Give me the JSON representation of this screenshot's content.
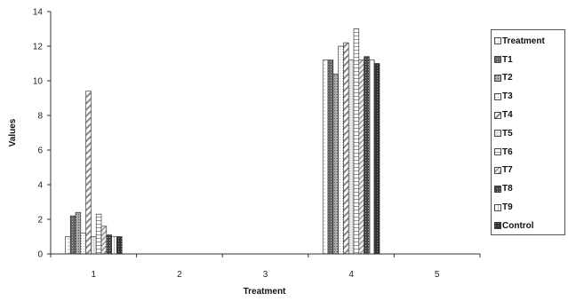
{
  "chart_data": {
    "type": "bar",
    "title": "",
    "xlabel": "Treatment",
    "ylabel": "Values",
    "ylim": [
      0,
      14
    ],
    "yticks": [
      0,
      2,
      4,
      6,
      8,
      10,
      12,
      14
    ],
    "categories": [
      "1",
      "2",
      "3",
      "4",
      "5"
    ],
    "grid": false,
    "legend": "right",
    "series": [
      {
        "name": "Treatment",
        "values": [
          1.0,
          null,
          null,
          11.2,
          null
        ]
      },
      {
        "name": "T1",
        "values": [
          2.2,
          null,
          null,
          11.2,
          null
        ]
      },
      {
        "name": "T2",
        "values": [
          2.4,
          null,
          null,
          10.4,
          null
        ]
      },
      {
        "name": "T3",
        "values": [
          1.2,
          null,
          null,
          12.0,
          null
        ]
      },
      {
        "name": "T4",
        "values": [
          9.4,
          null,
          null,
          12.2,
          null
        ]
      },
      {
        "name": "T5",
        "values": [
          1.0,
          null,
          null,
          11.2,
          null
        ]
      },
      {
        "name": "T6",
        "values": [
          2.3,
          null,
          null,
          13.0,
          null
        ]
      },
      {
        "name": "T7",
        "values": [
          1.6,
          null,
          null,
          11.2,
          null
        ]
      },
      {
        "name": "T8",
        "values": [
          1.1,
          null,
          null,
          11.4,
          null
        ]
      },
      {
        "name": "T9",
        "values": [
          1.0,
          null,
          null,
          11.2,
          null
        ]
      },
      {
        "name": "Control",
        "values": [
          1.0,
          null,
          null,
          11.0,
          null
        ]
      }
    ]
  }
}
